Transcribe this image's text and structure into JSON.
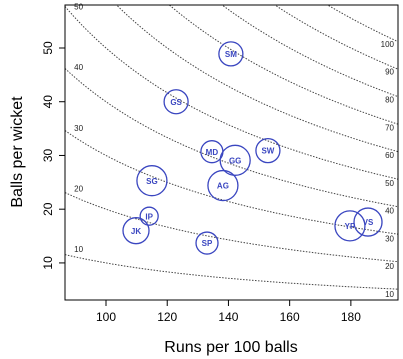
{
  "chart_data": {
    "type": "bubble",
    "x_label": "Runs per 100 balls",
    "y_label": "Balls per wicket",
    "labels": [
      "SM",
      "GS",
      "MD",
      "GG",
      "SW",
      "SG",
      "AG",
      "IP",
      "JK",
      "SP",
      "YP",
      "VS"
    ],
    "x": [
      140.8,
      122.9,
      134.6,
      142.2,
      152.9,
      115.0,
      138.2,
      114.1,
      109.8,
      133.0,
      179.7,
      185.6
    ],
    "values": [
      48.9,
      40.0,
      30.7,
      29.1,
      30.9,
      25.3,
      24.4,
      18.7,
      16.0,
      13.7,
      16.9,
      17.6
    ],
    "sizes": [
      12,
      12,
      11,
      15,
      12,
      15,
      15,
      9,
      13,
      11,
      15,
      14
    ],
    "color": "#3a46c0",
    "contour_levels": [
      10,
      20,
      30,
      40,
      50,
      60,
      70,
      80,
      90,
      100
    ],
    "xlim": [
      86.6,
      195.4
    ],
    "ylim": [
      3.1,
      58
    ],
    "xticks": [
      100,
      120,
      140,
      160,
      180
    ],
    "yticks": [
      10,
      20,
      30,
      40,
      50
    ]
  }
}
